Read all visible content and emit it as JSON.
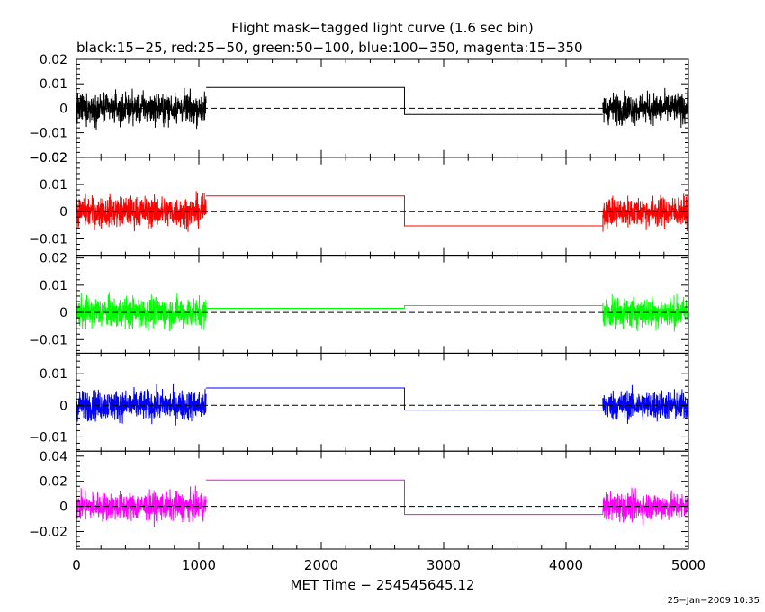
{
  "chart_data": {
    "type": "line",
    "title": "Flight mask−tagged light curve (1.6 sec bin)",
    "subtitle": "black:15−25, red:25−50, green:50−100, blue:100−350, magenta:15−350",
    "xlabel": "MET Time − 254545645.12",
    "xlim": [
      0,
      5000
    ],
    "xticks": [
      0,
      1000,
      2000,
      3000,
      4000,
      5000
    ],
    "xtick_labels": [
      "0",
      "1000",
      "2000",
      "3000",
      "4000",
      "5000"
    ],
    "reference_line": 0,
    "segments": [
      {
        "band": "15−25",
        "color": "#000000",
        "ylim": [
          -0.02,
          0.02
        ],
        "yticks": [
          0.02,
          0.01,
          0,
          -0.01,
          -0.02
        ],
        "ytick_labels": [
          "0.02",
          "0.01",
          "0",
          "−0.01",
          "−0.02"
        ],
        "noise_amplitude": 0.011,
        "noisy_intervals": [
          [
            0,
            1060
          ],
          [
            4300,
            5000
          ]
        ],
        "step": [
          [
            1060,
            0.0085
          ],
          [
            2680,
            0.0085
          ],
          [
            2680,
            -0.0025
          ],
          [
            4300,
            -0.0025
          ]
        ]
      },
      {
        "band": "25−50",
        "color": "#ff0000",
        "ylim": [
          -0.016,
          0.02
        ],
        "yticks": [
          0.02,
          0.01,
          0,
          -0.01
        ],
        "ytick_labels": [
          "0.02",
          "0.01",
          "0",
          "−0.01"
        ],
        "noise_amplitude": 0.01,
        "noisy_intervals": [
          [
            0,
            1060
          ],
          [
            4300,
            5000
          ]
        ],
        "step": [
          [
            1060,
            0.0058
          ],
          [
            2680,
            0.0058
          ],
          [
            2680,
            -0.0052
          ],
          [
            4300,
            -0.0052
          ]
        ]
      },
      {
        "band": "50−100",
        "color": "#00ff00",
        "ylim": [
          -0.015,
          0.021
        ],
        "yticks": [
          0.02,
          0.01,
          0,
          -0.01
        ],
        "ytick_labels": [
          "0.02",
          "0.01",
          "0",
          "−0.01"
        ],
        "noise_amplitude": 0.01,
        "noisy_intervals": [
          [
            0,
            1060
          ],
          [
            4300,
            5000
          ]
        ],
        "step": [
          [
            1060,
            0.0015
          ],
          [
            2680,
            0.0015
          ],
          [
            2680,
            0.0025
          ],
          [
            4300,
            0.0025
          ]
        ]
      },
      {
        "band": "100−350",
        "color": "#0000ff",
        "ylim": [
          -0.0145,
          0.0165
        ],
        "yticks": [
          0.01,
          0,
          -0.01
        ],
        "ytick_labels": [
          "0.01",
          "0",
          "−0.01"
        ],
        "noise_amplitude": 0.0085,
        "noisy_intervals": [
          [
            0,
            1060
          ],
          [
            4300,
            5000
          ]
        ],
        "step": [
          [
            1060,
            0.0055
          ],
          [
            2680,
            0.0055
          ],
          [
            2680,
            -0.0015
          ],
          [
            4300,
            -0.0015
          ]
        ]
      },
      {
        "band": "15−350",
        "color": "#ff00ff",
        "ylim": [
          -0.034,
          0.044
        ],
        "yticks": [
          0.04,
          0.02,
          0,
          -0.02
        ],
        "ytick_labels": [
          "0.04",
          "0.02",
          "0",
          "−0.02"
        ],
        "noise_amplitude": 0.02,
        "noisy_intervals": [
          [
            0,
            1060
          ],
          [
            4300,
            5000
          ]
        ],
        "step": [
          [
            1060,
            0.021
          ],
          [
            2680,
            0.021
          ],
          [
            2680,
            -0.0065
          ],
          [
            4300,
            -0.0065
          ]
        ]
      }
    ]
  },
  "footer": {
    "timestamp": "25−Jan−2009 10:35"
  }
}
